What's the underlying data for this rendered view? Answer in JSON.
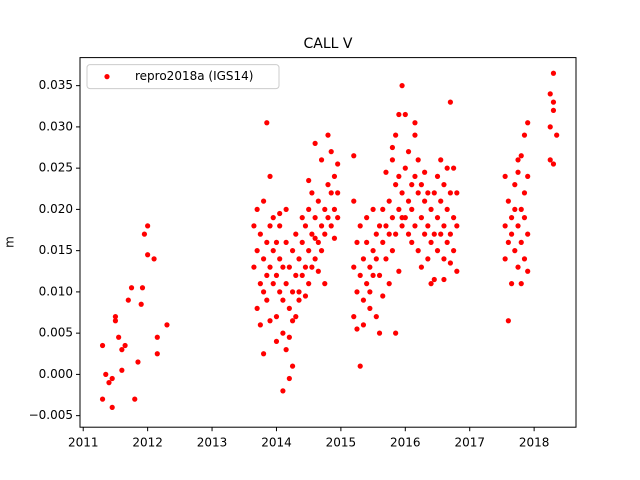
{
  "chart_data": {
    "type": "scatter",
    "title": "CALL V",
    "y_label": "m",
    "legend_position": "upper left",
    "xlim": [
      2010.95,
      2018.65
    ],
    "xticks": [
      2011,
      2012,
      2013,
      2014,
      2015,
      2016,
      2017,
      2018
    ],
    "ylim": [
      -0.0064,
      0.0384
    ],
    "yticks": [
      {
        "value": -0.005,
        "label": "−0.005"
      },
      {
        "value": 0,
        "label": "0.000"
      },
      0.005,
      {
        "value": 0.01,
        "label": "0.010"
      },
      0.015,
      {
        "value": 0.02,
        "label": "0.020"
      },
      0.025,
      {
        "value": 0.03,
        "label": "0.030"
      },
      0.035
    ],
    "x": [
      2011.3,
      2011.3,
      2011.35,
      2011.4,
      2011.45,
      2011.5,
      2011.5,
      2011.55,
      2011.6,
      2011.65,
      2011.7,
      2011.75,
      2011.8,
      2011.85,
      2011.9,
      2011.92,
      2011.95,
      2012.0,
      2012.0,
      2012.1,
      2012.15,
      2012.15,
      2012.3,
      2011.6,
      2011.45,
      2013.65,
      2013.65,
      2013.7,
      2013.7,
      2013.7,
      2013.75,
      2013.75,
      2013.75,
      2013.8,
      2013.8,
      2013.8,
      2013.8,
      2013.85,
      2013.85,
      2013.85,
      2013.85,
      2013.9,
      2013.9,
      2013.9,
      2013.9,
      2013.95,
      2013.95,
      2013.95,
      2014.0,
      2014.0,
      2014.0,
      2014.0,
      2014.05,
      2014.05,
      2014.05,
      2014.05,
      2014.1,
      2014.1,
      2014.1,
      2014.1,
      2014.15,
      2014.15,
      2014.15,
      2014.15,
      2014.2,
      2014.2,
      2014.2,
      2014.2,
      2014.25,
      2014.25,
      2014.25,
      2014.25,
      2014.3,
      2014.3,
      2014.3,
      2014.35,
      2014.35,
      2014.35,
      2014.4,
      2014.4,
      2014.4,
      2014.45,
      2014.45,
      2014.45,
      2014.5,
      2014.5,
      2014.5,
      2014.5,
      2014.55,
      2014.55,
      2014.55,
      2014.6,
      2014.6,
      2014.6,
      2014.6,
      2014.65,
      2014.65,
      2014.65,
      2014.7,
      2014.7,
      2014.7,
      2014.75,
      2014.75,
      2014.75,
      2014.8,
      2014.8,
      2014.8,
      2014.85,
      2014.85,
      2014.85,
      2014.9,
      2014.9,
      2014.9,
      2014.95,
      2014.95,
      2014.95,
      2015.2,
      2015.2,
      2015.2,
      2015.2,
      2015.25,
      2015.25,
      2015.25,
      2015.3,
      2015.3,
      2015.3,
      2015.35,
      2015.35,
      2015.35,
      2015.4,
      2015.4,
      2015.4,
      2015.45,
      2015.45,
      2015.45,
      2015.5,
      2015.5,
      2015.5,
      2015.55,
      2015.55,
      2015.55,
      2015.6,
      2015.6,
      2015.6,
      2015.65,
      2015.65,
      2015.65,
      2015.7,
      2015.7,
      2015.7,
      2015.75,
      2015.75,
      2015.75,
      2015.8,
      2015.8,
      2015.8,
      2015.8,
      2015.85,
      2015.85,
      2015.85,
      2015.85,
      2015.9,
      2015.9,
      2015.9,
      2015.9,
      2015.95,
      2015.95,
      2015.95,
      2015.95,
      2016.0,
      2016.0,
      2016.0,
      2016.05,
      2016.05,
      2016.05,
      2016.1,
      2016.1,
      2016.1,
      2016.15,
      2016.15,
      2016.15,
      2016.15,
      2016.2,
      2016.2,
      2016.2,
      2016.25,
      2016.25,
      2016.25,
      2016.3,
      2016.3,
      2016.3,
      2016.35,
      2016.35,
      2016.35,
      2016.4,
      2016.4,
      2016.4,
      2016.45,
      2016.45,
      2016.45,
      2016.5,
      2016.5,
      2016.5,
      2016.55,
      2016.55,
      2016.55,
      2016.6,
      2016.6,
      2016.6,
      2016.6,
      2016.65,
      2016.65,
      2016.65,
      2016.7,
      2016.7,
      2016.7,
      2016.7,
      2016.75,
      2016.75,
      2016.75,
      2016.8,
      2016.8,
      2016.8,
      2017.55,
      2017.55,
      2017.55,
      2017.6,
      2017.6,
      2017.6,
      2017.65,
      2017.65,
      2017.65,
      2017.7,
      2017.7,
      2017.7,
      2017.75,
      2017.75,
      2017.75,
      2017.75,
      2017.8,
      2017.8,
      2017.8,
      2017.8,
      2017.85,
      2017.85,
      2017.85,
      2017.85,
      2017.9,
      2017.9,
      2017.9,
      2017.9,
      2018.25,
      2018.25,
      2018.25,
      2018.3,
      2018.3,
      2018.3,
      2018.3,
      2018.35
    ],
    "series": [
      {
        "name": "repro2018a (IGS14)",
        "color": "#ff0000",
        "values": [
          0.0035,
          -0.003,
          0.0,
          -0.001,
          -0.004,
          0.007,
          0.0065,
          0.0045,
          0.003,
          0.0035,
          0.009,
          0.0105,
          -0.003,
          0.0015,
          0.0085,
          0.0105,
          0.017,
          0.018,
          0.0145,
          0.014,
          0.0045,
          0.0025,
          0.006,
          0.0005,
          -0.0005,
          0.013,
          0.018,
          0.008,
          0.015,
          0.02,
          0.011,
          0.006,
          0.017,
          0.014,
          0.0025,
          0.021,
          0.01,
          0.012,
          0.016,
          0.0305,
          0.009,
          0.024,
          0.013,
          0.018,
          0.0065,
          0.015,
          0.011,
          0.019,
          0.012,
          0.007,
          0.016,
          0.004,
          0.014,
          0.01,
          0.018,
          0.0195,
          0.009,
          0.005,
          0.013,
          -0.002,
          0.011,
          0.016,
          0.003,
          0.02,
          0.008,
          0.013,
          -0.0005,
          0.0045,
          0.01,
          0.015,
          0.001,
          0.0065,
          0.012,
          0.007,
          0.017,
          0.014,
          0.01,
          0.009,
          0.016,
          0.012,
          0.019,
          0.013,
          0.018,
          0.0095,
          0.015,
          0.02,
          0.011,
          0.0235,
          0.017,
          0.013,
          0.022,
          0.014,
          0.019,
          0.0165,
          0.028,
          0.016,
          0.021,
          0.0125,
          0.018,
          0.015,
          0.026,
          0.02,
          0.017,
          0.011,
          0.019,
          0.023,
          0.029,
          0.022,
          0.018,
          0.027,
          0.024,
          0.02,
          0.0165,
          0.019,
          0.022,
          0.0255,
          0.013,
          0.007,
          0.021,
          0.0265,
          0.01,
          0.016,
          0.0055,
          0.012,
          0.001,
          0.018,
          0.009,
          0.014,
          0.006,
          0.011,
          0.016,
          0.019,
          0.013,
          0.008,
          0.01,
          0.015,
          0.012,
          0.02,
          0.017,
          0.007,
          0.014,
          0.012,
          0.018,
          0.005,
          0.016,
          0.02,
          0.0095,
          0.018,
          0.014,
          0.0245,
          0.021,
          0.017,
          0.011,
          0.026,
          0.019,
          0.0275,
          0.015,
          0.023,
          0.029,
          0.017,
          0.005,
          0.02,
          0.024,
          0.0315,
          0.0125,
          0.022,
          0.035,
          0.018,
          0.019,
          0.025,
          0.019,
          0.0315,
          0.021,
          0.017,
          0.027,
          0.02,
          0.023,
          0.016,
          0.029,
          0.024,
          0.018,
          0.0305,
          0.022,
          0.015,
          0.026,
          0.019,
          0.023,
          0.013,
          0.017,
          0.021,
          0.0245,
          0.018,
          0.014,
          0.022,
          0.02,
          0.016,
          0.011,
          0.022,
          0.017,
          0.0115,
          0.019,
          0.015,
          0.024,
          0.021,
          0.017,
          0.026,
          0.018,
          0.014,
          0.023,
          0.0115,
          0.02,
          0.016,
          0.025,
          0.017,
          0.022,
          0.0135,
          0.033,
          0.019,
          0.015,
          0.025,
          0.018,
          0.022,
          0.0125,
          0.024,
          0.018,
          0.014,
          0.021,
          0.016,
          0.0065,
          0.017,
          0.011,
          0.019,
          0.02,
          0.023,
          0.015,
          0.018,
          0.013,
          0.026,
          0.0245,
          0.016,
          0.02,
          0.011,
          0.0265,
          0.019,
          0.022,
          0.014,
          0.029,
          0.017,
          0.024,
          0.0305,
          0.0125,
          0.03,
          0.026,
          0.034,
          0.033,
          0.0365,
          0.032,
          0.0255,
          0.029
        ]
      }
    ]
  }
}
